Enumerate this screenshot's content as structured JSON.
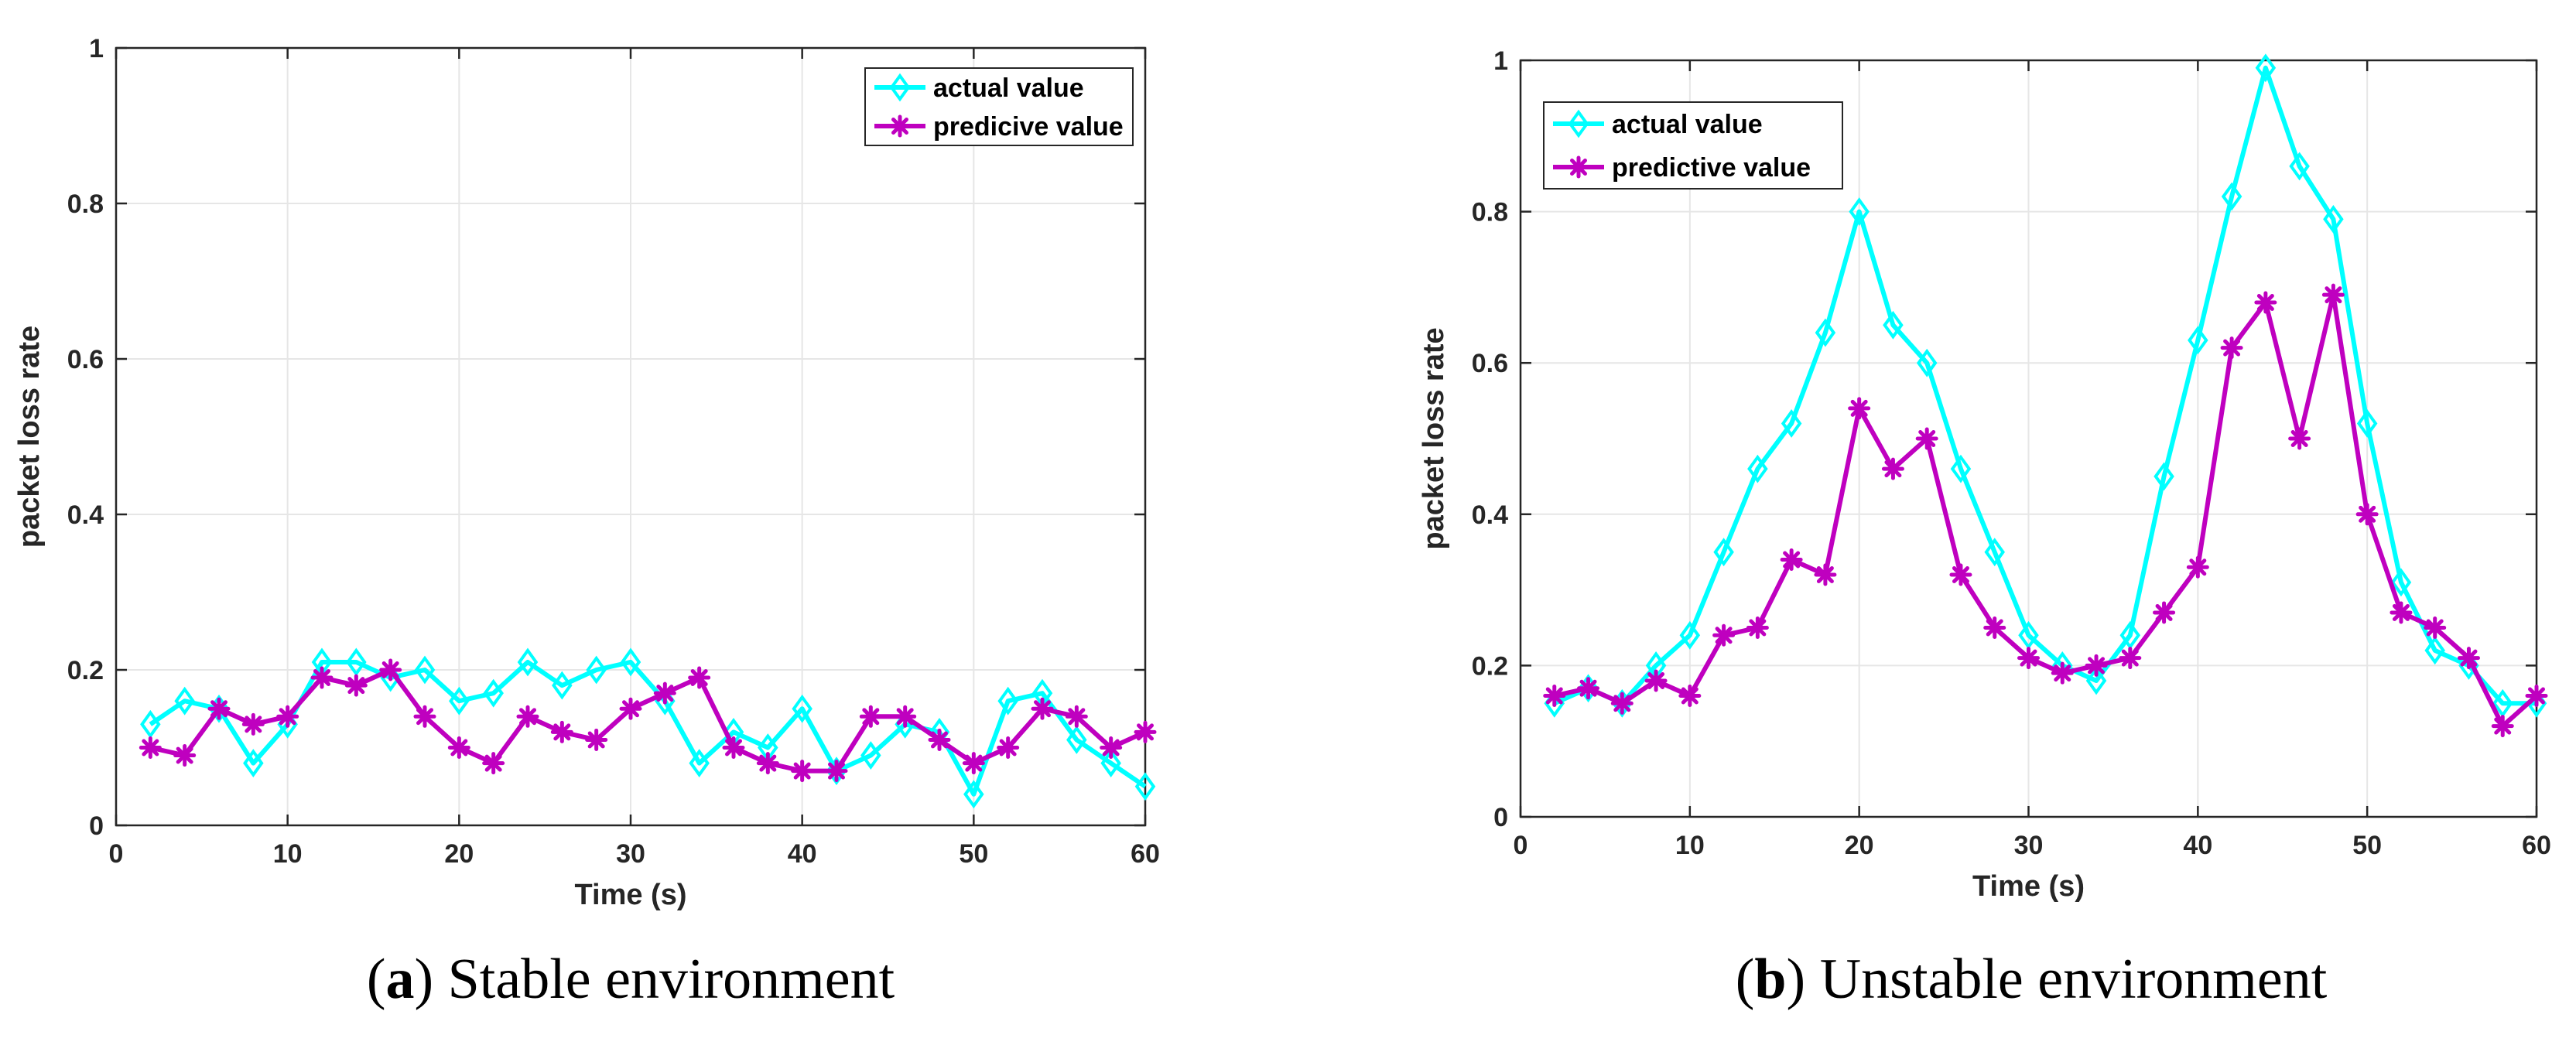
{
  "chart_data": [
    {
      "type": "line",
      "id": "a",
      "caption_letter": "a",
      "caption_text": " Stable environment",
      "xlabel": "Time (s)",
      "ylabel": "packet loss rate",
      "xlim": [
        0,
        60
      ],
      "ylim": [
        0,
        1
      ],
      "xticks": [
        "0",
        "10",
        "20",
        "30",
        "40",
        "50",
        "60"
      ],
      "yticks": [
        "0",
        "0.2",
        "0.4",
        "0.6",
        "0.8",
        "1"
      ],
      "grid": true,
      "legend_position": "top-right",
      "x": [
        2,
        4,
        6,
        8,
        10,
        12,
        14,
        16,
        18,
        20,
        22,
        24,
        26,
        28,
        30,
        32,
        34,
        36,
        38,
        40,
        42,
        44,
        46,
        48,
        50,
        52,
        54,
        56,
        58,
        60
      ],
      "series": [
        {
          "name": "actual value",
          "color": "#00FFFF",
          "marker": "diamond",
          "values": [
            0.13,
            0.16,
            0.15,
            0.08,
            0.13,
            0.21,
            0.21,
            0.19,
            0.2,
            0.16,
            0.17,
            0.21,
            0.18,
            0.2,
            0.21,
            0.16,
            0.08,
            0.12,
            0.1,
            0.15,
            0.07,
            0.09,
            0.13,
            0.12,
            0.04,
            0.16,
            0.17,
            0.11,
            0.08,
            0.05
          ]
        },
        {
          "name": "predicive value",
          "color": "#BF00BF",
          "marker": "star",
          "values": [
            0.1,
            0.09,
            0.15,
            0.13,
            0.14,
            0.19,
            0.18,
            0.2,
            0.14,
            0.1,
            0.08,
            0.14,
            0.12,
            0.11,
            0.15,
            0.17,
            0.19,
            0.1,
            0.08,
            0.07,
            0.07,
            0.14,
            0.14,
            0.11,
            0.08,
            0.1,
            0.15,
            0.14,
            0.1,
            0.12
          ]
        }
      ]
    },
    {
      "type": "line",
      "id": "b",
      "caption_letter": "b",
      "caption_text": " Unstable environment",
      "xlabel": "Time (s)",
      "ylabel": "packet loss rate",
      "xlim": [
        0,
        60
      ],
      "ylim": [
        0,
        1
      ],
      "xticks": [
        "0",
        "10",
        "20",
        "30",
        "40",
        "50",
        "60"
      ],
      "yticks": [
        "0",
        "0.2",
        "0.4",
        "0.6",
        "0.8",
        "1"
      ],
      "grid": true,
      "legend_position": "top-left",
      "x": [
        2,
        4,
        6,
        8,
        10,
        12,
        14,
        16,
        18,
        20,
        22,
        24,
        26,
        28,
        30,
        32,
        34,
        36,
        38,
        40,
        42,
        44,
        46,
        48,
        50,
        52,
        54,
        56,
        58,
        60
      ],
      "series": [
        {
          "name": "actual value",
          "color": "#00FFFF",
          "marker": "diamond",
          "values": [
            0.15,
            0.17,
            0.15,
            0.2,
            0.24,
            0.35,
            0.46,
            0.52,
            0.64,
            0.8,
            0.65,
            0.6,
            0.46,
            0.35,
            0.24,
            0.2,
            0.18,
            0.24,
            0.45,
            0.63,
            0.82,
            0.99,
            0.86,
            0.79,
            0.52,
            0.31,
            0.22,
            0.2,
            0.15,
            0.15
          ]
        },
        {
          "name": "predictive value",
          "color": "#BF00BF",
          "marker": "star",
          "values": [
            0.16,
            0.17,
            0.15,
            0.18,
            0.16,
            0.24,
            0.25,
            0.34,
            0.32,
            0.54,
            0.46,
            0.5,
            0.32,
            0.25,
            0.21,
            0.19,
            0.2,
            0.21,
            0.27,
            0.33,
            0.62,
            0.68,
            0.5,
            0.69,
            0.4,
            0.27,
            0.25,
            0.21,
            0.12,
            0.16
          ]
        }
      ]
    }
  ]
}
